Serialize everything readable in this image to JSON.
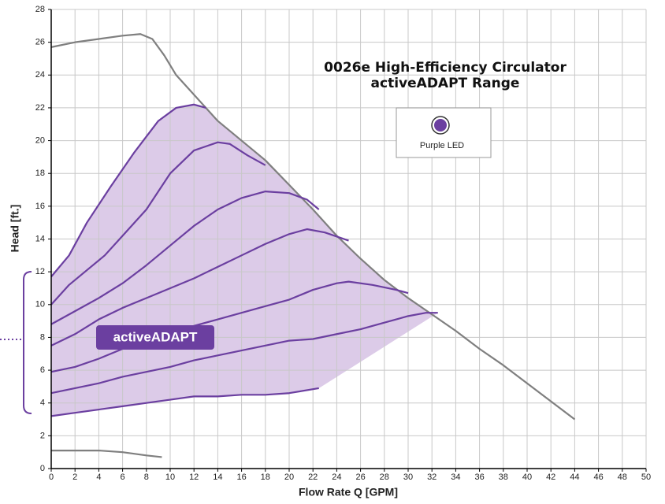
{
  "chart_data": {
    "type": "line",
    "title": [
      "0026e High-Efficiency Circulator",
      "activeADAPT Range"
    ],
    "x_label": "Flow Rate Q [GPM]",
    "y_label": "Head [ft.]",
    "legend": "Purple LED",
    "legend_color": "#6b3fa0",
    "annotation": "activeADAPT",
    "area_color": "#dccbe8",
    "xlim": [
      0,
      50
    ],
    "ylim": [
      0,
      28
    ],
    "xticks": [
      0,
      2,
      4,
      6,
      8,
      10,
      12,
      14,
      16,
      18,
      20,
      22,
      24,
      26,
      28,
      30,
      32,
      34,
      36,
      38,
      40,
      42,
      44,
      46,
      48,
      50
    ],
    "yticks": [
      0,
      2,
      4,
      6,
      8,
      10,
      12,
      14,
      16,
      18,
      20,
      22,
      24,
      26,
      28
    ],
    "grid": true,
    "series": [
      {
        "color": "#7f7f7f",
        "x": [
          0,
          2,
          4,
          6,
          7.5,
          8.5,
          9.5,
          10.5,
          12,
          14,
          16,
          18,
          20,
          22,
          24,
          26,
          28,
          30,
          32,
          34,
          36,
          38,
          40,
          42,
          44
        ],
        "values": [
          25.7,
          26,
          26.2,
          26.4,
          26.5,
          26.2,
          25.2,
          24,
          22.8,
          21.2,
          20,
          18.8,
          17.3,
          15.8,
          14.2,
          12.8,
          11.5,
          10.4,
          9.4,
          8.4,
          7.3,
          6.3,
          5.2,
          4.1,
          3
        ]
      },
      {
        "color": "#7f7f7f",
        "x": [
          0,
          2,
          4,
          6,
          8,
          9.3
        ],
        "values": [
          1.1,
          1.1,
          1.1,
          1.0,
          0.8,
          0.7
        ]
      },
      {
        "color": "#6b3fa0",
        "x": [
          0,
          1.5,
          3,
          5,
          7,
          9,
          10.5,
          12,
          13
        ],
        "values": [
          11.7,
          13,
          15,
          17.2,
          19.3,
          21.2,
          22,
          22.2,
          22
        ]
      },
      {
        "color": "#6b3fa0",
        "x": [
          0,
          1.5,
          3,
          4.5,
          6,
          8,
          10,
          12,
          14,
          15,
          16.5,
          18
        ],
        "values": [
          10,
          11.2,
          12.1,
          13,
          14.2,
          15.8,
          18,
          19.4,
          19.9,
          19.8,
          19.1,
          18.5
        ]
      },
      {
        "color": "#6b3fa0",
        "x": [
          0,
          2,
          4,
          6,
          8,
          10,
          12,
          14,
          16,
          18,
          20,
          21.5,
          22.5
        ],
        "values": [
          8.8,
          9.6,
          10.4,
          11.3,
          12.4,
          13.6,
          14.8,
          15.8,
          16.5,
          16.9,
          16.8,
          16.4,
          15.8
        ]
      },
      {
        "color": "#6b3fa0",
        "x": [
          0,
          2,
          4,
          6,
          8,
          10,
          12,
          14,
          16,
          18,
          20,
          21.5,
          23,
          25
        ],
        "values": [
          7.5,
          8.2,
          9.1,
          9.8,
          10.4,
          11,
          11.6,
          12.3,
          13,
          13.7,
          14.3,
          14.6,
          14.4,
          13.9
        ]
      },
      {
        "color": "#6b3fa0",
        "x": [
          0,
          2,
          4,
          6,
          8,
          10,
          12,
          14,
          16,
          18,
          20,
          22,
          24,
          25,
          27,
          29,
          30
        ],
        "values": [
          5.9,
          6.2,
          6.7,
          7.3,
          7.8,
          8.3,
          8.7,
          9.1,
          9.5,
          9.9,
          10.3,
          10.9,
          11.3,
          11.4,
          11.2,
          10.9,
          10.7
        ]
      },
      {
        "color": "#6b3fa0",
        "x": [
          0,
          2,
          4,
          6,
          8,
          10,
          12,
          14,
          16,
          18,
          20,
          22,
          24,
          26,
          28,
          30,
          31.5,
          32.5
        ],
        "values": [
          4.6,
          4.9,
          5.2,
          5.6,
          5.9,
          6.2,
          6.6,
          6.9,
          7.2,
          7.5,
          7.8,
          7.9,
          8.2,
          8.5,
          8.9,
          9.3,
          9.5,
          9.5
        ]
      },
      {
        "color": "#6b3fa0",
        "x": [
          0,
          2,
          4,
          6,
          8,
          10,
          12,
          14,
          16,
          18,
          20,
          22.5
        ],
        "values": [
          3.2,
          3.4,
          3.6,
          3.8,
          4.0,
          4.2,
          4.4,
          4.4,
          4.5,
          4.5,
          4.6,
          4.9
        ]
      }
    ]
  }
}
